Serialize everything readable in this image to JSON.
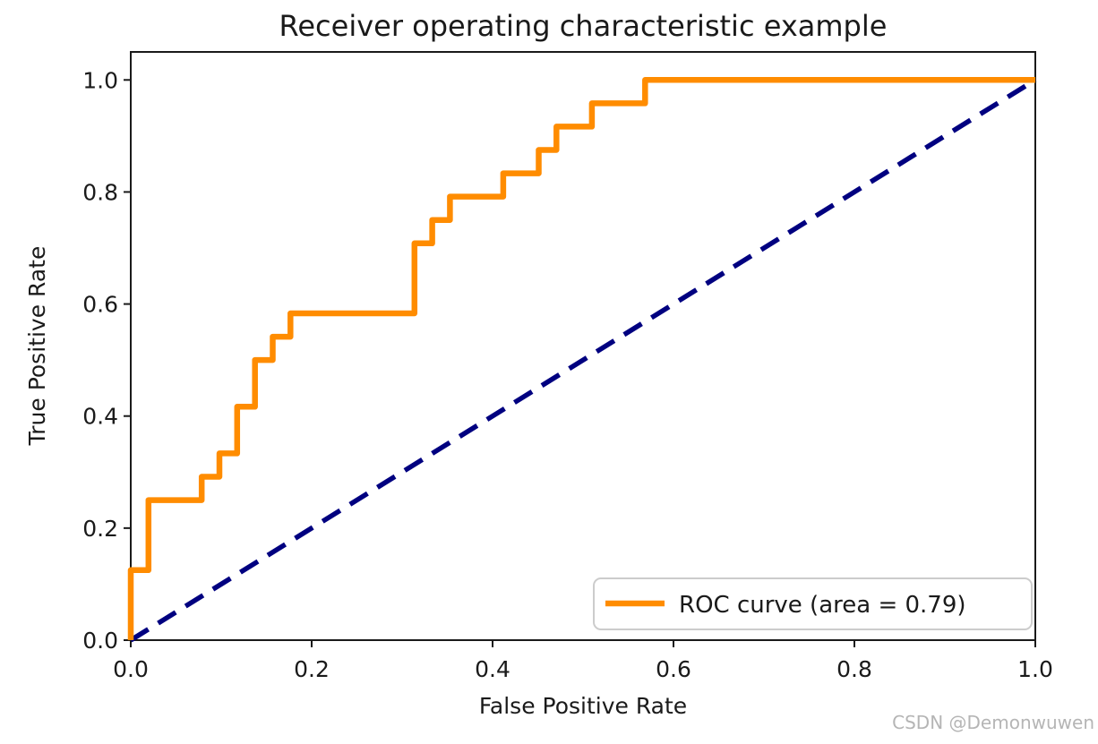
{
  "figure": {
    "watermark": "CSDN @Demonwuwen"
  },
  "chart_data": {
    "type": "line",
    "title": "Receiver operating characteristic example",
    "xlabel": "False Positive Rate",
    "ylabel": "True Positive Rate",
    "xlim": [
      0.0,
      1.0
    ],
    "ylim": [
      0.0,
      1.05
    ],
    "grid": false,
    "legend_position": "lower right",
    "xticks": [
      {
        "value": 0.0,
        "label": "0.0"
      },
      {
        "value": 0.2,
        "label": "0.2"
      },
      {
        "value": 0.4,
        "label": "0.4"
      },
      {
        "value": 0.6,
        "label": "0.6"
      },
      {
        "value": 0.8,
        "label": "0.8"
      },
      {
        "value": 1.0,
        "label": "1.0"
      }
    ],
    "yticks": [
      {
        "value": 0.0,
        "label": "0.0"
      },
      {
        "value": 0.2,
        "label": "0.2"
      },
      {
        "value": 0.4,
        "label": "0.4"
      },
      {
        "value": 0.6,
        "label": "0.6"
      },
      {
        "value": 0.8,
        "label": "0.8"
      },
      {
        "value": 1.0,
        "label": "1.0"
      }
    ],
    "legend_entries": [
      {
        "label": "ROC curve (area = 0.79)",
        "color": "#ff8c00"
      }
    ],
    "series": [
      {
        "name": "roc-curve",
        "auc": 0.79,
        "color": "#ff8c00",
        "linestyle": "solid",
        "linewidth": 6.5,
        "x": [
          0.0,
          0.0,
          0.0196,
          0.0196,
          0.0784,
          0.0784,
          0.098,
          0.098,
          0.1176,
          0.1176,
          0.1373,
          0.1373,
          0.1569,
          0.1569,
          0.1765,
          0.1765,
          0.3137,
          0.3137,
          0.3333,
          0.3333,
          0.3529,
          0.3529,
          0.4118,
          0.4118,
          0.451,
          0.451,
          0.4706,
          0.4706,
          0.5098,
          0.5098,
          0.5686,
          0.5686,
          1.0
        ],
        "y": [
          0.0,
          0.125,
          0.125,
          0.25,
          0.25,
          0.2917,
          0.2917,
          0.3333,
          0.3333,
          0.4167,
          0.4167,
          0.5,
          0.5,
          0.5417,
          0.5417,
          0.5833,
          0.5833,
          0.7083,
          0.7083,
          0.75,
          0.75,
          0.7917,
          0.7917,
          0.8333,
          0.8333,
          0.875,
          0.875,
          0.9167,
          0.9167,
          0.9583,
          0.9583,
          1.0,
          1.0
        ]
      },
      {
        "name": "chance-diagonal",
        "color": "#000080",
        "linestyle": "dashed",
        "linewidth": 5.5,
        "x": [
          0.0,
          1.0
        ],
        "y": [
          0.0,
          1.0
        ]
      }
    ]
  }
}
